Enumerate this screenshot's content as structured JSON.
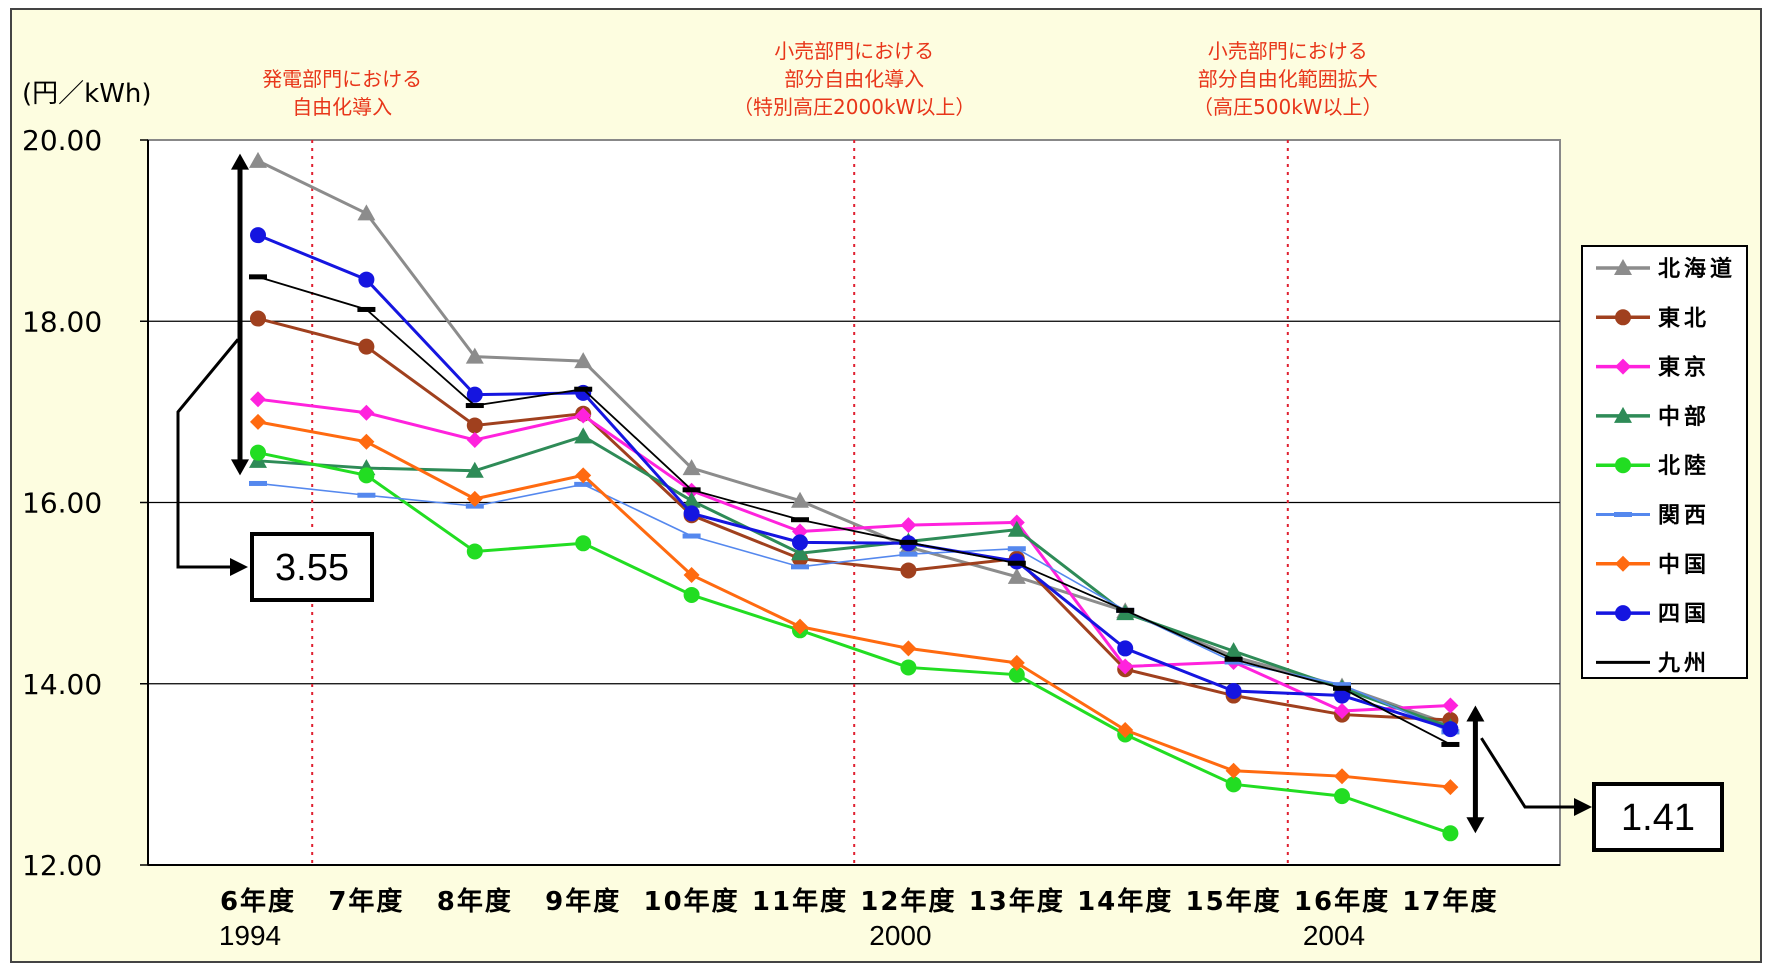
{
  "chart_data": {
    "type": "line",
    "title": "",
    "ylabel": "(円／kWh)",
    "xlabel": "",
    "ylim": [
      12,
      20
    ],
    "yticks": [
      "20.00",
      "18.00",
      "16.00",
      "14.00",
      "12.00"
    ],
    "yticks_values": [
      20,
      18,
      16,
      14,
      12
    ],
    "grid": true,
    "legend_placement": "right",
    "categories": [
      "6年度",
      "7年度",
      "8年度",
      "9年度",
      "10年度",
      "11年度",
      "12年度",
      "13年度",
      "14年度",
      "15年度",
      "16年度",
      "17年度"
    ],
    "year_labels": [
      {
        "category_index": 0,
        "text": "1994"
      },
      {
        "category_index": 6,
        "text": "2000"
      },
      {
        "category_index": 10,
        "text": "2004"
      }
    ],
    "events": [
      {
        "between": [
          0,
          1
        ],
        "text": [
          "発電部門における",
          "自由化導入"
        ]
      },
      {
        "between": [
          5,
          6
        ],
        "text": [
          "小売部門における",
          "部分自由化導入",
          "（特別高圧2000kW以上）"
        ]
      },
      {
        "between": [
          9,
          10
        ],
        "text": [
          "小売部門における",
          "部分自由化範囲拡大",
          "（高圧500kW以上）"
        ]
      }
    ],
    "callouts": [
      {
        "category_index": 0,
        "value": "3.55",
        "range": [
          16.3,
          19.85
        ]
      },
      {
        "category_index": 11,
        "value": "1.41",
        "range": [
          12.35,
          13.76
        ]
      }
    ],
    "series": [
      {
        "name": "北海道",
        "color": "#8c8c8c",
        "marker": "triangle",
        "values": [
          19.77,
          19.19,
          17.61,
          17.56,
          16.38,
          16.02,
          15.51,
          15.18,
          14.8,
          14.3,
          13.97,
          13.55
        ]
      },
      {
        "name": "東北",
        "color": "#a0401e",
        "marker": "circle",
        "values": [
          18.03,
          17.72,
          16.85,
          16.98,
          15.86,
          15.38,
          15.25,
          15.38,
          14.16,
          13.87,
          13.66,
          13.6
        ]
      },
      {
        "name": "東京",
        "color": "#ff22dd",
        "marker": "diamond",
        "values": [
          17.14,
          16.99,
          16.69,
          16.96,
          16.13,
          15.68,
          15.75,
          15.78,
          14.19,
          14.24,
          13.7,
          13.76
        ]
      },
      {
        "name": "中部",
        "color": "#2e8b57",
        "marker": "triangle",
        "values": [
          16.46,
          16.38,
          16.35,
          16.73,
          16.02,
          15.44,
          15.57,
          15.7,
          14.78,
          14.36,
          13.95,
          13.52
        ]
      },
      {
        "name": "北陸",
        "color": "#22dd22",
        "marker": "circle",
        "values": [
          16.55,
          16.3,
          15.46,
          15.55,
          14.98,
          14.59,
          14.18,
          14.1,
          13.44,
          12.89,
          12.76,
          12.35
        ]
      },
      {
        "name": "関西",
        "color": "#5588ee",
        "marker": "dash",
        "values": [
          16.21,
          16.08,
          15.96,
          16.2,
          15.63,
          15.29,
          15.43,
          15.49,
          14.81,
          14.24,
          13.99,
          13.47
        ]
      },
      {
        "name": "中国",
        "color": "#ff6a10",
        "marker": "diamond",
        "values": [
          16.89,
          16.67,
          16.04,
          16.3,
          15.2,
          14.63,
          14.39,
          14.23,
          13.49,
          13.04,
          12.98,
          12.86
        ]
      },
      {
        "name": "四国",
        "color": "#1515e0",
        "marker": "circle",
        "values": [
          18.95,
          18.46,
          17.19,
          17.21,
          15.88,
          15.56,
          15.55,
          15.35,
          14.39,
          13.92,
          13.87,
          13.5
        ]
      },
      {
        "name": "九州",
        "color": "#000000",
        "marker": "dash",
        "values": [
          18.49,
          18.13,
          17.07,
          17.25,
          16.14,
          15.81,
          15.56,
          15.33,
          14.81,
          14.27,
          13.95,
          13.33
        ]
      }
    ]
  }
}
